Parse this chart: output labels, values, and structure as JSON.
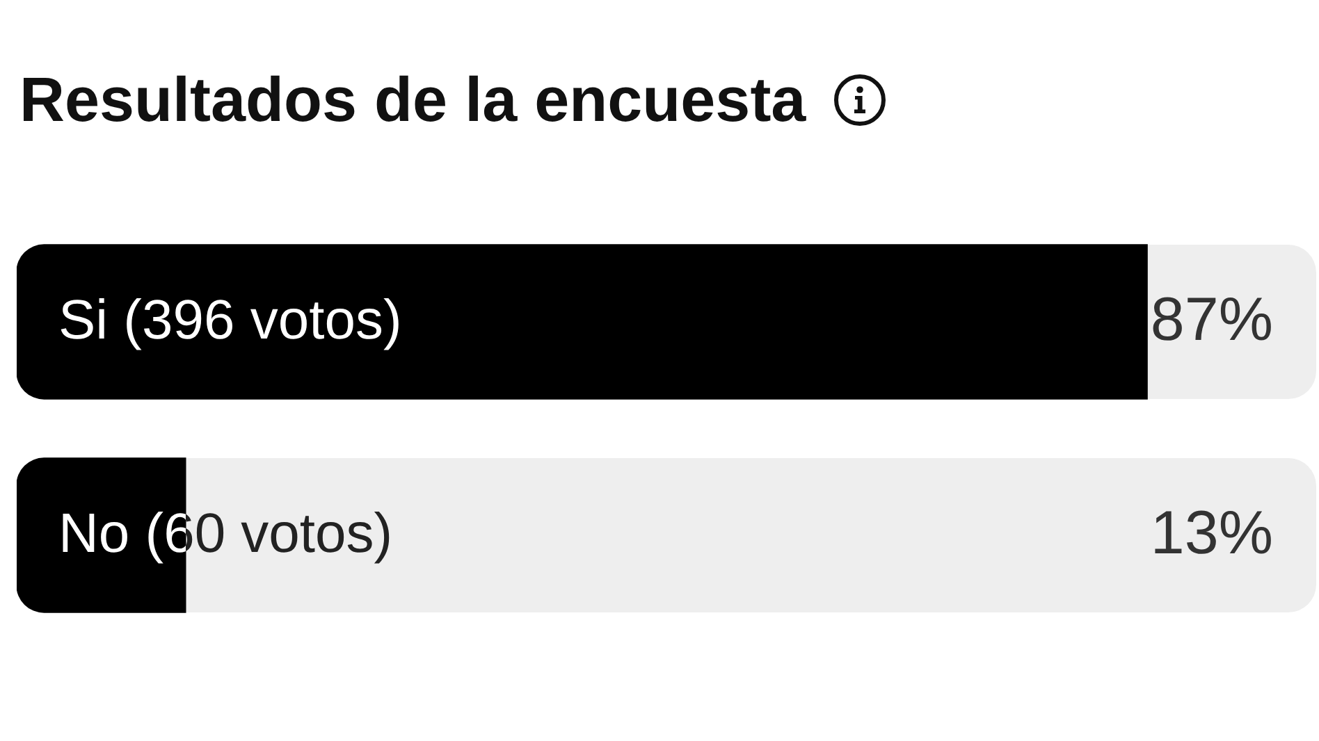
{
  "chart_data": {
    "type": "bar",
    "orientation": "horizontal",
    "title": "Resultados de la encuesta",
    "categories": [
      "Si (396 votos)",
      "No (60 votos)"
    ],
    "values": [
      87,
      13
    ],
    "color": "#000000",
    "value_labels": [
      "87%",
      "13%"
    ],
    "xlim": [
      0,
      100
    ]
  }
}
